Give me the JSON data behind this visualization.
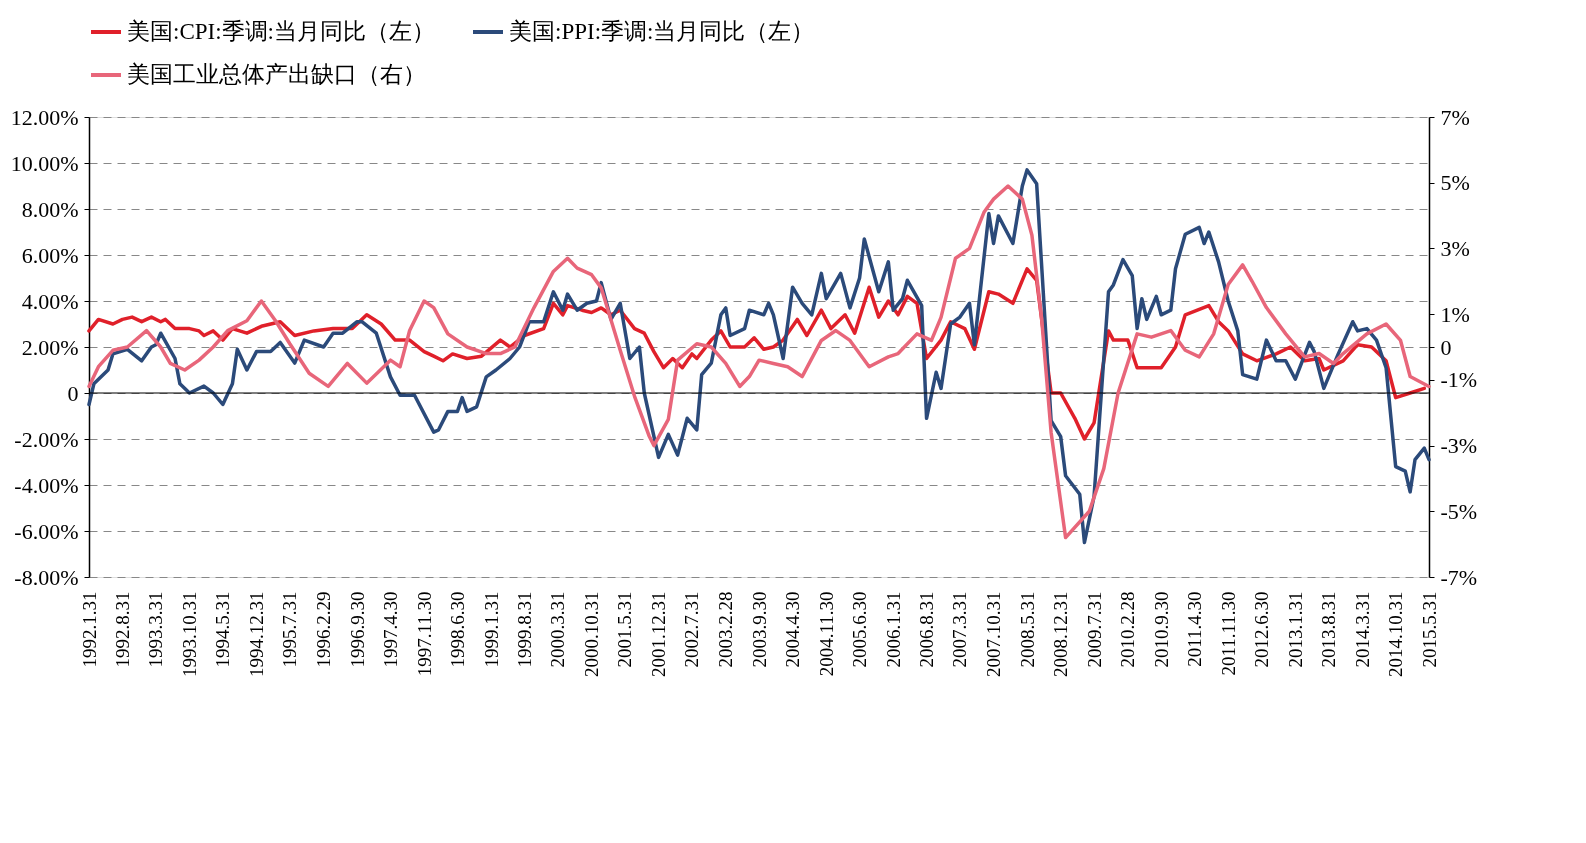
{
  "chart_data": {
    "type": "line",
    "xlim": [
      "1992-01",
      "2015-05"
    ],
    "xticks": [
      {
        "value": "1992-01",
        "label": "1992.1.31"
      },
      {
        "value": "1992-08",
        "label": "1992.8.31"
      },
      {
        "value": "1993-03",
        "label": "1993.3.31"
      },
      {
        "value": "1993-10",
        "label": "1993.10.31"
      },
      {
        "value": "1994-05",
        "label": "1994.5.31"
      },
      {
        "value": "1994-12",
        "label": "1994.12.31"
      },
      {
        "value": "1995-07",
        "label": "1995.7.31"
      },
      {
        "value": "1996-02",
        "label": "1996.2.29"
      },
      {
        "value": "1996-09",
        "label": "1996.9.30"
      },
      {
        "value": "1997-04",
        "label": "1997.4.30"
      },
      {
        "value": "1997-11",
        "label": "1997.11.30"
      },
      {
        "value": "1998-06",
        "label": "1998.6.30"
      },
      {
        "value": "1999-01",
        "label": "1999.1.31"
      },
      {
        "value": "1999-08",
        "label": "1999.8.31"
      },
      {
        "value": "2000-03",
        "label": "2000.3.31"
      },
      {
        "value": "2000-10",
        "label": "2000.10.31"
      },
      {
        "value": "2001-05",
        "label": "2001.5.31"
      },
      {
        "value": "2001-12",
        "label": "2001.12.31"
      },
      {
        "value": "2002-07",
        "label": "2002.7.31"
      },
      {
        "value": "2003-02",
        "label": "2003.2.28"
      },
      {
        "value": "2003-09",
        "label": "2003.9.30"
      },
      {
        "value": "2004-04",
        "label": "2004.4.30"
      },
      {
        "value": "2004-11",
        "label": "2004.11.30"
      },
      {
        "value": "2005-06",
        "label": "2005.6.30"
      },
      {
        "value": "2006-01",
        "label": "2006.1.31"
      },
      {
        "value": "2006-08",
        "label": "2006.8.31"
      },
      {
        "value": "2007-03",
        "label": "2007.3.31"
      },
      {
        "value": "2007-10",
        "label": "2007.10.31"
      },
      {
        "value": "2008-05",
        "label": "2008.5.31"
      },
      {
        "value": "2008-12",
        "label": "2008.12.31"
      },
      {
        "value": "2009-07",
        "label": "2009.7.31"
      },
      {
        "value": "2010-02",
        "label": "2010.2.28"
      },
      {
        "value": "2010-09",
        "label": "2010.9.30"
      },
      {
        "value": "2011-04",
        "label": "2011.4.30"
      },
      {
        "value": "2011-11",
        "label": "2011.11.30"
      },
      {
        "value": "2012-06",
        "label": "2012.6.30"
      },
      {
        "value": "2013-01",
        "label": "2013.1.31"
      },
      {
        "value": "2013-08",
        "label": "2013.8.31"
      },
      {
        "value": "2014-03",
        "label": "2014.3.31"
      },
      {
        "value": "2014-10",
        "label": "2014.10.31"
      },
      {
        "value": "2015-05",
        "label": "2015.5.31"
      }
    ],
    "ylim": [
      -8,
      12
    ],
    "yticks": [
      {
        "value": 12,
        "label": "12.00%"
      },
      {
        "value": 10,
        "label": "10.00%"
      },
      {
        "value": 8,
        "label": "8.00%"
      },
      {
        "value": 6,
        "label": "6.00%"
      },
      {
        "value": 4,
        "label": "4.00%"
      },
      {
        "value": 2,
        "label": "2.00%"
      },
      {
        "value": 0,
        "label": "0"
      },
      {
        "value": -2,
        "label": "-2.00%"
      },
      {
        "value": -4,
        "label": "-4.00%"
      },
      {
        "value": -6,
        "label": "-6.00%"
      },
      {
        "value": -8,
        "label": "-8.00%"
      }
    ],
    "y2lim": [
      -7,
      7
    ],
    "y2ticks": [
      {
        "value": 7,
        "label": "7%"
      },
      {
        "value": 5,
        "label": "5%"
      },
      {
        "value": 3,
        "label": "3%"
      },
      {
        "value": 1,
        "label": "1%"
      },
      {
        "value": 0,
        "label": "0"
      },
      {
        "value": -1,
        "label": "-1%"
      },
      {
        "value": -3,
        "label": "-3%"
      },
      {
        "value": -5,
        "label": "-5%"
      },
      {
        "value": -7,
        "label": "-7%"
      }
    ],
    "grid": "y",
    "legend": "top",
    "marker": "none",
    "line_style": "solid",
    "ref_lines": [
      {
        "axis": "y",
        "value": 0,
        "color": "#000000",
        "line_style": "solid"
      }
    ],
    "series": [
      {
        "name": "美国:CPI:季调:当月同比（左）",
        "color": "#e0202a",
        "axis": "y",
        "x": [
          "1992-01",
          "1992-03",
          "1992-06",
          "1992-08",
          "1992-10",
          "1992-12",
          "1993-02",
          "1993-04",
          "1993-05",
          "1993-07",
          "1993-10",
          "1993-12",
          "1994-01",
          "1994-03",
          "1994-05",
          "1994-07",
          "1994-10",
          "1995-01",
          "1995-05",
          "1995-08",
          "1995-12",
          "1996-04",
          "1996-08",
          "1996-11",
          "1997-02",
          "1997-05",
          "1997-08",
          "1997-11",
          "1998-01",
          "1998-03",
          "1998-05",
          "1998-08",
          "1998-11",
          "1999-03",
          "1999-05",
          "1999-08",
          "1999-12",
          "2000-02",
          "2000-04",
          "2000-05",
          "2000-08",
          "2000-10",
          "2000-12",
          "2001-02",
          "2001-04",
          "2001-07",
          "2001-09",
          "2001-11",
          "2002-01",
          "2002-03",
          "2002-05",
          "2002-07",
          "2002-08",
          "2002-11",
          "2003-01",
          "2003-03",
          "2003-06",
          "2003-08",
          "2003-10",
          "2003-12",
          "2004-02",
          "2004-05",
          "2004-07",
          "2004-10",
          "2004-12",
          "2005-03",
          "2005-05",
          "2005-08",
          "2005-10",
          "2005-12",
          "2006-02",
          "2006-04",
          "2006-06",
          "2006-08",
          "2006-11",
          "2007-01",
          "2007-04",
          "2007-06",
          "2007-09",
          "2007-11",
          "2008-02",
          "2008-05",
          "2008-07",
          "2008-10",
          "2008-12",
          "2009-03",
          "2009-05",
          "2009-07",
          "2009-10",
          "2009-11",
          "2010-02",
          "2010-04",
          "2010-07",
          "2010-09",
          "2010-12",
          "2011-02",
          "2011-07",
          "2011-09",
          "2011-11",
          "2012-02",
          "2012-05",
          "2012-09",
          "2012-12",
          "2013-03",
          "2013-06",
          "2013-07",
          "2013-11",
          "2014-02",
          "2014-05",
          "2014-08",
          "2014-10",
          "2015-01",
          "2015-04"
        ],
        "values": [
          2.7,
          3.2,
          3.0,
          3.2,
          3.3,
          3.1,
          3.3,
          3.1,
          3.2,
          2.8,
          2.8,
          2.7,
          2.5,
          2.7,
          2.3,
          2.8,
          2.6,
          2.9,
          3.1,
          2.5,
          2.7,
          2.8,
          2.8,
          3.4,
          3.0,
          2.3,
          2.3,
          1.8,
          1.6,
          1.4,
          1.7,
          1.5,
          1.6,
          2.3,
          2.0,
          2.5,
          2.8,
          3.9,
          3.4,
          3.8,
          3.6,
          3.5,
          3.7,
          3.4,
          3.6,
          2.8,
          2.6,
          1.8,
          1.1,
          1.5,
          1.1,
          1.7,
          1.5,
          2.3,
          2.7,
          2.0,
          2.0,
          2.4,
          1.9,
          2.0,
          2.3,
          3.2,
          2.5,
          3.6,
          2.8,
          3.4,
          2.6,
          4.6,
          3.3,
          4.0,
          3.4,
          4.2,
          3.9,
          1.5,
          2.3,
          3.1,
          2.8,
          1.9,
          4.4,
          4.3,
          3.9,
          5.4,
          4.9,
          0.0,
          0.0,
          -1.1,
          -2.0,
          -1.3,
          2.7,
          2.3,
          2.3,
          1.1,
          1.1,
          1.1,
          2.0,
          3.4,
          3.8,
          3.1,
          2.7,
          1.7,
          1.4,
          1.7,
          2.0,
          1.4,
          1.5,
          1.0,
          1.4,
          2.1,
          2.0,
          1.4,
          -0.2,
          0.0,
          0.2
        ]
      },
      {
        "name": "美国:PPI:季调:当月同比（左）",
        "color": "#2b4a7a",
        "axis": "y",
        "x": [
          "1992-01",
          "1992-02",
          "1992-05",
          "1992-06",
          "1992-09",
          "1992-12",
          "1993-02",
          "1993-03",
          "1993-04",
          "1993-07",
          "1993-08",
          "1993-10",
          "1994-01",
          "1994-03",
          "1994-05",
          "1994-07",
          "1994-08",
          "1994-10",
          "1994-12",
          "1995-03",
          "1995-05",
          "1995-08",
          "1995-10",
          "1996-02",
          "1996-04",
          "1996-06",
          "1996-09",
          "1996-10",
          "1997-01",
          "1997-04",
          "1997-06",
          "1997-09",
          "1998-01",
          "1998-02",
          "1998-04",
          "1998-06",
          "1998-07",
          "1998-08",
          "1998-10",
          "1998-12",
          "1999-02",
          "1999-05",
          "1999-07",
          "1999-09",
          "1999-12",
          "2000-02",
          "2000-04",
          "2000-05",
          "2000-07",
          "2000-09",
          "2000-11",
          "2000-12",
          "2001-02",
          "2001-04",
          "2001-06",
          "2001-08",
          "2001-09",
          "2001-12",
          "2002-02",
          "2002-04",
          "2002-06",
          "2002-08",
          "2002-09",
          "2002-11",
          "2003-01",
          "2003-02",
          "2003-03",
          "2003-06",
          "2003-07",
          "2003-10",
          "2003-11",
          "2003-12",
          "2004-02",
          "2004-04",
          "2004-06",
          "2004-08",
          "2004-10",
          "2004-11",
          "2005-02",
          "2005-04",
          "2005-06",
          "2005-07",
          "2005-10",
          "2005-12",
          "2006-01",
          "2006-03",
          "2006-04",
          "2006-07",
          "2006-08",
          "2006-10",
          "2006-11",
          "2007-01",
          "2007-03",
          "2007-05",
          "2007-06",
          "2007-09",
          "2007-10",
          "2007-11",
          "2008-02",
          "2008-04",
          "2008-05",
          "2008-07",
          "2008-10",
          "2008-12",
          "2009-01",
          "2009-04",
          "2009-05",
          "2009-07",
          "2009-10",
          "2009-11",
          "2010-01",
          "2010-03",
          "2010-04",
          "2010-05",
          "2010-06",
          "2010-08",
          "2010-09",
          "2010-11",
          "2010-12",
          "2011-02",
          "2011-05",
          "2011-06",
          "2011-07",
          "2011-09",
          "2011-11",
          "2012-01",
          "2012-02",
          "2012-05",
          "2012-07",
          "2012-09",
          "2012-11",
          "2013-01",
          "2013-04",
          "2013-05",
          "2013-07",
          "2013-10",
          "2014-01",
          "2014-02",
          "2014-04",
          "2014-06",
          "2014-08",
          "2014-10",
          "2014-12",
          "2015-01",
          "2015-02",
          "2015-04",
          "2015-05"
        ],
        "values": [
          -0.5,
          0.4,
          1.0,
          1.7,
          1.9,
          1.4,
          2.0,
          2.1,
          2.6,
          1.5,
          0.4,
          0.0,
          0.3,
          0.0,
          -0.5,
          0.4,
          1.9,
          1.0,
          1.8,
          1.8,
          2.2,
          1.3,
          2.3,
          2.0,
          2.6,
          2.6,
          3.1,
          3.1,
          2.6,
          0.7,
          -0.1,
          -0.1,
          -1.7,
          -1.6,
          -0.8,
          -0.8,
          -0.2,
          -0.8,
          -0.6,
          0.7,
          1.0,
          1.5,
          2.0,
          3.1,
          3.1,
          4.4,
          3.6,
          4.3,
          3.6,
          3.9,
          4.0,
          4.8,
          3.2,
          3.9,
          1.5,
          2.0,
          0.0,
          -2.8,
          -1.8,
          -2.7,
          -1.1,
          -1.6,
          0.8,
          1.3,
          3.4,
          3.7,
          2.5,
          2.8,
          3.6,
          3.4,
          3.9,
          3.4,
          1.5,
          4.6,
          3.9,
          3.4,
          5.2,
          4.1,
          5.2,
          3.7,
          5.0,
          6.7,
          4.4,
          5.7,
          3.6,
          4.1,
          4.9,
          3.8,
          -1.1,
          0.9,
          0.2,
          3.0,
          3.3,
          3.9,
          2.1,
          7.8,
          6.5,
          7.7,
          6.5,
          9.0,
          9.7,
          9.1,
          -1.2,
          -1.9,
          -3.6,
          -4.4,
          -6.5,
          -4.5,
          4.4,
          4.7,
          5.8,
          5.1,
          2.8,
          4.1,
          3.2,
          4.2,
          3.4,
          3.6,
          5.4,
          6.9,
          7.2,
          6.5,
          7.0,
          5.7,
          4.0,
          2.7,
          0.8,
          0.6,
          2.3,
          1.4,
          1.4,
          0.6,
          2.2,
          1.8,
          0.2,
          1.7,
          3.1,
          2.7,
          2.8,
          2.3,
          1.1,
          -3.2,
          -3.4,
          -4.3,
          -2.9,
          -2.4,
          -2.9
        ]
      },
      {
        "name": "美国工业总体产出缺口（右）",
        "color": "#e8667a",
        "axis": "y2",
        "x": [
          "1992-01",
          "1992-03",
          "1992-06",
          "1992-09",
          "1993-01",
          "1993-04",
          "1993-06",
          "1993-09",
          "1993-12",
          "1994-03",
          "1994-06",
          "1994-10",
          "1995-01",
          "1995-04",
          "1995-07",
          "1995-11",
          "1996-03",
          "1996-07",
          "1996-11",
          "1997-04",
          "1997-06",
          "1997-08",
          "1997-11",
          "1998-01",
          "1998-04",
          "1998-08",
          "1998-12",
          "1999-03",
          "1999-06",
          "1999-10",
          "2000-02",
          "2000-05",
          "2000-07",
          "2000-10",
          "2000-12",
          "2001-04",
          "2001-07",
          "2001-10",
          "2001-11",
          "2002-02",
          "2002-04",
          "2002-08",
          "2002-11",
          "2003-02",
          "2003-05",
          "2003-07",
          "2003-09",
          "2003-12",
          "2004-03",
          "2004-06",
          "2004-10",
          "2005-01",
          "2005-04",
          "2005-08",
          "2005-12",
          "2006-02",
          "2006-06",
          "2006-09",
          "2006-11",
          "2007-02",
          "2007-05",
          "2007-08",
          "2007-10",
          "2008-01",
          "2008-04",
          "2008-06",
          "2008-08",
          "2008-10",
          "2009-01",
          "2009-06",
          "2009-09",
          "2009-12",
          "2010-04",
          "2010-07",
          "2010-11",
          "2011-02",
          "2011-05",
          "2011-08",
          "2011-11",
          "2012-02",
          "2012-04",
          "2012-07",
          "2012-11",
          "2013-03",
          "2013-06",
          "2013-09",
          "2013-11",
          "2014-04",
          "2014-08",
          "2014-11",
          "2015-01",
          "2015-05"
        ],
        "values": [
          -1.2,
          -0.6,
          -0.1,
          0.0,
          0.5,
          0.0,
          -0.5,
          -0.7,
          -0.4,
          0.0,
          0.5,
          0.8,
          1.4,
          0.8,
          0.1,
          -0.8,
          -1.2,
          -0.5,
          -1.1,
          -0.4,
          -0.6,
          0.5,
          1.4,
          1.2,
          0.4,
          0.0,
          -0.2,
          -0.2,
          0.0,
          1.2,
          2.3,
          2.7,
          2.4,
          2.2,
          1.8,
          -0.1,
          -1.5,
          -2.7,
          -3.0,
          -2.2,
          -0.4,
          0.1,
          0.0,
          -0.5,
          -1.2,
          -0.9,
          -0.4,
          -0.5,
          -0.6,
          -0.9,
          0.2,
          0.5,
          0.2,
          -0.6,
          -0.3,
          -0.2,
          0.4,
          0.2,
          0.9,
          2.7,
          3.0,
          4.1,
          4.5,
          4.9,
          4.5,
          3.4,
          0.9,
          -2.6,
          -5.8,
          -5.0,
          -3.7,
          -1.4,
          0.4,
          0.3,
          0.5,
          -0.1,
          -0.3,
          0.4,
          1.9,
          2.5,
          2.0,
          1.2,
          0.4,
          -0.3,
          -0.2,
          -0.5,
          -0.2,
          0.4,
          0.7,
          0.2,
          -0.9,
          -1.2
        ]
      }
    ]
  }
}
